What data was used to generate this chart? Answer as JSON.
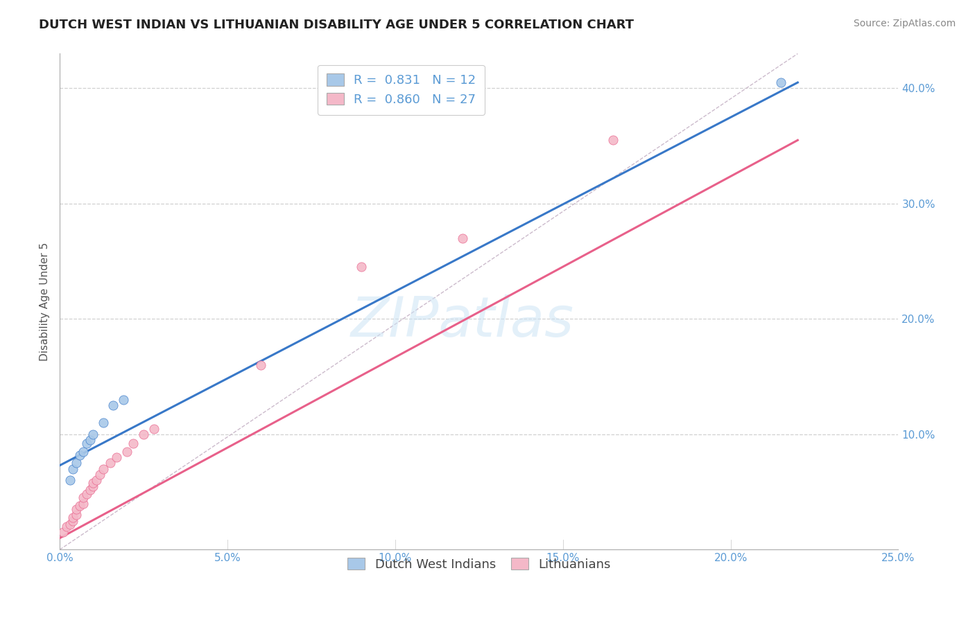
{
  "title": "DUTCH WEST INDIAN VS LITHUANIAN DISABILITY AGE UNDER 5 CORRELATION CHART",
  "source_text": "Source: ZipAtlas.com",
  "ylabel": "Disability Age Under 5",
  "xlim": [
    0.0,
    0.25
  ],
  "ylim": [
    0.0,
    0.43
  ],
  "xtick_labels": [
    "0.0%",
    "",
    "",
    "",
    "",
    "",
    "",
    "",
    "",
    "5.0%",
    "",
    "",
    "",
    "",
    "",
    "",
    "",
    "",
    "",
    "10.0%",
    "",
    "",
    "",
    "",
    "",
    "",
    "",
    "",
    "",
    "15.0%",
    "",
    "",
    "",
    "",
    "",
    "",
    "",
    "",
    "",
    "20.0%",
    "",
    "",
    "",
    "",
    "",
    "",
    "",
    "",
    "",
    "25.0%"
  ],
  "xtick_values": [
    0.0,
    0.005,
    0.01,
    0.015,
    0.02,
    0.025,
    0.03,
    0.035,
    0.04,
    0.045,
    0.05,
    0.055,
    0.06,
    0.065,
    0.07,
    0.075,
    0.08,
    0.085,
    0.09,
    0.095,
    0.1,
    0.105,
    0.11,
    0.115,
    0.12,
    0.125,
    0.13,
    0.135,
    0.14,
    0.145,
    0.15,
    0.155,
    0.16,
    0.165,
    0.17,
    0.175,
    0.18,
    0.185,
    0.19,
    0.195,
    0.2,
    0.205,
    0.21,
    0.215,
    0.22,
    0.225,
    0.23,
    0.235,
    0.24,
    0.245,
    0.25
  ],
  "xtick_major_labels": [
    "0.0%",
    "5.0%",
    "10.0%",
    "15.0%",
    "20.0%",
    "25.0%"
  ],
  "xtick_major_values": [
    0.0,
    0.05,
    0.1,
    0.15,
    0.2,
    0.25
  ],
  "ytick_labels": [
    "10.0%",
    "20.0%",
    "30.0%",
    "40.0%"
  ],
  "ytick_values": [
    0.1,
    0.2,
    0.3,
    0.4
  ],
  "blue_color": "#a8c8e8",
  "pink_color": "#f4b8c8",
  "blue_line_color": "#3878c8",
  "pink_line_color": "#e8608a",
  "legend_R_blue": "0.831",
  "legend_N_blue": "12",
  "legend_R_pink": "0.860",
  "legend_N_pink": "27",
  "legend_label_blue": "Dutch West Indians",
  "legend_label_pink": "Lithuanians",
  "watermark": "ZIPatlas",
  "blue_scatter_x": [
    0.003,
    0.004,
    0.005,
    0.006,
    0.007,
    0.008,
    0.009,
    0.01,
    0.013,
    0.016,
    0.019,
    0.215
  ],
  "blue_scatter_y": [
    0.06,
    0.07,
    0.075,
    0.082,
    0.085,
    0.092,
    0.095,
    0.1,
    0.11,
    0.125,
    0.13,
    0.405
  ],
  "pink_scatter_x": [
    0.001,
    0.002,
    0.003,
    0.004,
    0.004,
    0.005,
    0.005,
    0.006,
    0.007,
    0.007,
    0.008,
    0.009,
    0.01,
    0.01,
    0.011,
    0.012,
    0.013,
    0.015,
    0.017,
    0.02,
    0.022,
    0.025,
    0.028,
    0.06,
    0.09,
    0.12,
    0.165
  ],
  "pink_scatter_y": [
    0.015,
    0.02,
    0.022,
    0.025,
    0.028,
    0.03,
    0.035,
    0.038,
    0.04,
    0.045,
    0.048,
    0.052,
    0.055,
    0.058,
    0.06,
    0.065,
    0.07,
    0.075,
    0.08,
    0.085,
    0.092,
    0.1,
    0.105,
    0.16,
    0.245,
    0.27,
    0.355
  ],
  "blue_line_x": [
    0.0,
    0.22
  ],
  "blue_line_y": [
    0.073,
    0.405
  ],
  "pink_line_x": [
    0.0,
    0.22
  ],
  "pink_line_y": [
    0.01,
    0.355
  ],
  "diag_line_x": [
    0.0,
    0.22
  ],
  "diag_line_y": [
    0.0,
    0.43
  ],
  "title_fontsize": 13,
  "axis_label_fontsize": 11,
  "tick_fontsize": 11,
  "legend_fontsize": 13,
  "source_fontsize": 10,
  "background_color": "#ffffff",
  "grid_color": "#d0d0d0"
}
